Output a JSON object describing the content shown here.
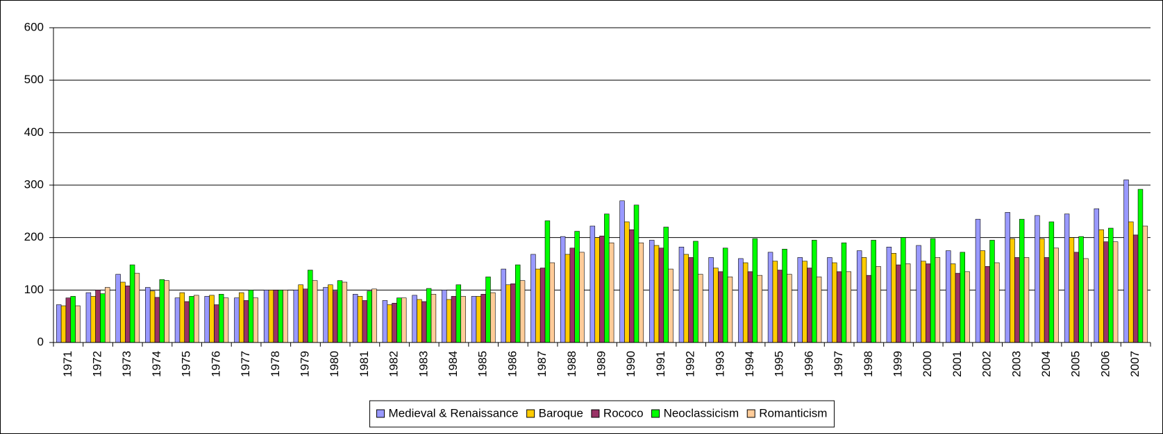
{
  "chart_data": {
    "type": "bar",
    "categories": [
      "1971",
      "1972",
      "1973",
      "1974",
      "1975",
      "1976",
      "1977",
      "1978",
      "1979",
      "1980",
      "1981",
      "1982",
      "1983",
      "1984",
      "1985",
      "1986",
      "1987",
      "1988",
      "1989",
      "1990",
      "1991",
      "1992",
      "1993",
      "1994",
      "1995",
      "1996",
      "1997",
      "1998",
      "1999",
      "2000",
      "2001",
      "2002",
      "2003",
      "2004",
      "2005",
      "2006",
      "2007"
    ],
    "series": [
      {
        "name": "Medieval & Renaissance",
        "color": "#9999ff",
        "values": [
          72,
          95,
          130,
          105,
          85,
          88,
          85,
          100,
          100,
          105,
          92,
          80,
          90,
          100,
          88,
          140,
          168,
          202,
          222,
          270,
          195,
          182,
          162,
          160,
          172,
          162,
          162,
          175,
          182,
          185,
          175,
          235,
          248,
          242,
          245,
          255,
          310
        ]
      },
      {
        "name": "Baroque",
        "color": "#ffcc00",
        "values": [
          70,
          88,
          115,
          98,
          95,
          90,
          95,
          100,
          110,
          110,
          88,
          72,
          82,
          82,
          88,
          110,
          140,
          168,
          200,
          230,
          185,
          168,
          142,
          152,
          155,
          155,
          152,
          162,
          170,
          155,
          150,
          175,
          198,
          198,
          200,
          215,
          230
        ]
      },
      {
        "name": "Rococo",
        "color": "#993366",
        "values": [
          85,
          100,
          108,
          86,
          78,
          72,
          80,
          100,
          102,
          98,
          80,
          75,
          78,
          88,
          92,
          112,
          142,
          180,
          203,
          215,
          180,
          162,
          135,
          135,
          138,
          142,
          135,
          128,
          148,
          150,
          132,
          145,
          162,
          162,
          172,
          192,
          205
        ]
      },
      {
        "name": "Neoclassicism",
        "color": "#00ff00",
        "values": [
          88,
          93,
          148,
          120,
          88,
          92,
          100,
          100,
          138,
          118,
          98,
          85,
          103,
          110,
          125,
          148,
          232,
          212,
          245,
          262,
          220,
          193,
          180,
          198,
          178,
          195,
          190,
          195,
          200,
          198,
          172,
          195,
          235,
          230,
          202,
          218,
          292
        ]
      },
      {
        "name": "Romanticism",
        "color": "#ffcc99",
        "values": [
          70,
          105,
          132,
          118,
          90,
          85,
          85,
          100,
          118,
          115,
          102,
          85,
          92,
          88,
          95,
          118,
          152,
          172,
          190,
          190,
          140,
          130,
          125,
          128,
          130,
          125,
          135,
          145,
          150,
          162,
          135,
          152,
          162,
          180,
          160,
          192,
          222
        ]
      }
    ],
    "ylim": [
      0,
      600
    ],
    "yticks": [
      0,
      100,
      200,
      300,
      400,
      500,
      600
    ],
    "grid": true,
    "legend": "bottom"
  }
}
